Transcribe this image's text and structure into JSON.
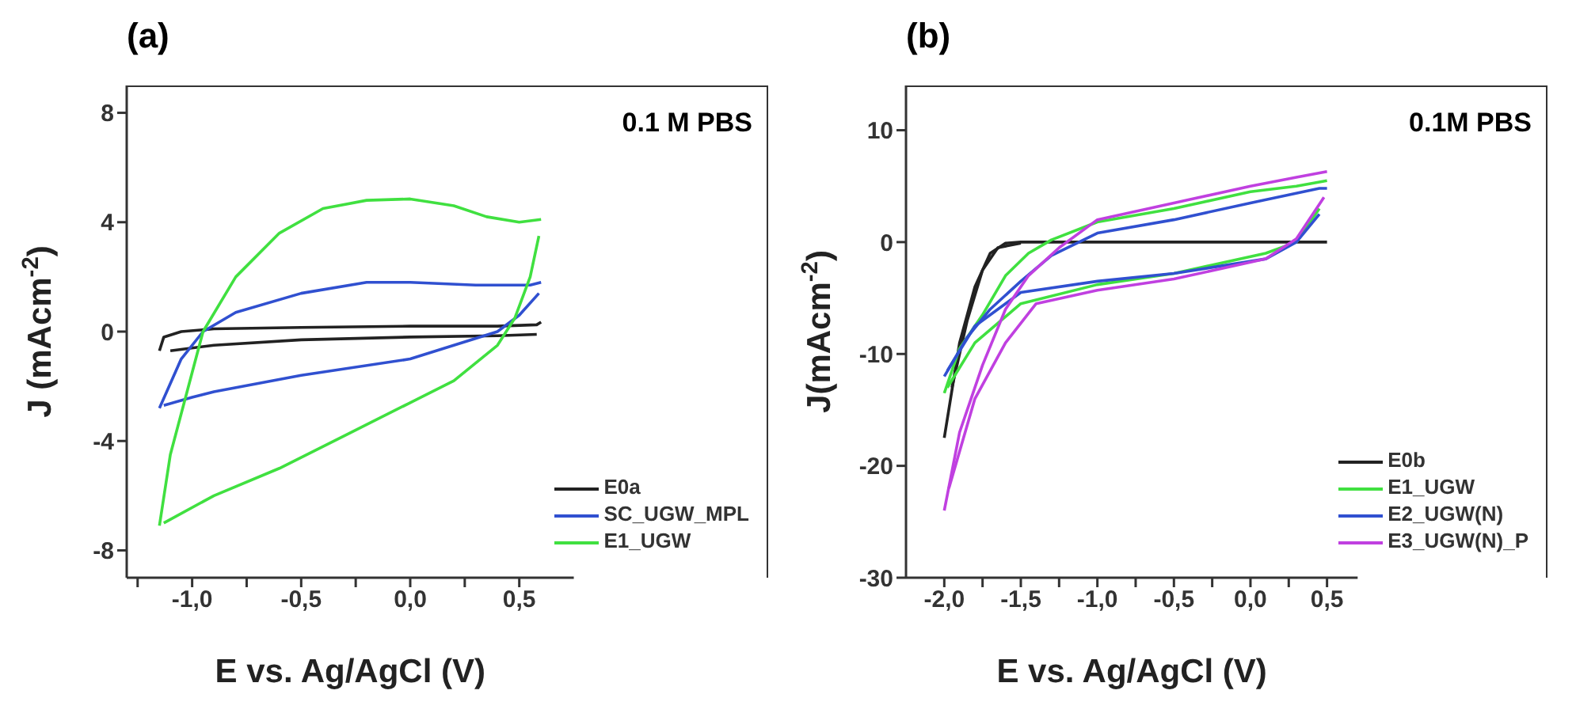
{
  "chart_data": [
    {
      "type": "line",
      "title": "(a)",
      "xlabel": "E vs. Ag/AgCl (V)",
      "ylabel": "J (mAcm$^{-2}$)",
      "annotations": [
        "0.1 M PBS"
      ],
      "xlim": [
        -1.3,
        0.75
      ],
      "xticks": [
        {
          "value": -1.25,
          "label": null
        },
        {
          "value": -1,
          "label": "-1,0"
        },
        {
          "value": -0.75,
          "label": null
        },
        {
          "value": -0.5,
          "label": "-0,5"
        },
        {
          "value": -0.25,
          "label": null
        },
        {
          "value": 0,
          "label": "0,0"
        },
        {
          "value": 0.25,
          "label": null
        },
        {
          "value": 0.5,
          "label": "0,5"
        }
      ],
      "ylim": [
        -9,
        9
      ],
      "yticks": [
        -8,
        -4,
        0,
        4,
        8
      ],
      "grid": false,
      "legend": "bottom right",
      "marker": "none",
      "line_style": "solid",
      "series": [
        {
          "name": "E0a",
          "color": "#222222",
          "x": [
            -1.15,
            -1.13,
            -1.05,
            -0.9,
            -0.5,
            0,
            0.4,
            0.58,
            0.6
          ],
          "values": [
            -0.7,
            -0.2,
            0.0,
            0.1,
            0.15,
            0.2,
            0.2,
            0.25,
            0.35
          ]
        },
        {
          "color": "#222222",
          "x": [
            0.58,
            0.4,
            0,
            -0.5,
            -0.9,
            -1.1
          ],
          "values": [
            -0.1,
            -0.15,
            -0.2,
            -0.3,
            -0.5,
            -0.7
          ]
        },
        {
          "name": "SC_UGW_MPL",
          "color": "#3050d0",
          "x": [
            -1.15,
            -1.05,
            -0.95,
            -0.8,
            -0.5,
            -0.2,
            0,
            0.3,
            0.55,
            0.6
          ],
          "values": [
            -2.8,
            -1.0,
            0.0,
            0.7,
            1.4,
            1.8,
            1.8,
            1.7,
            1.7,
            1.8
          ]
        },
        {
          "color": "#3050d0",
          "x": [
            0.59,
            0.5,
            0.4,
            0.2,
            0,
            -0.5,
            -0.9,
            -1.0,
            -1.13
          ],
          "values": [
            1.4,
            0.6,
            0.0,
            -0.5,
            -1.0,
            -1.6,
            -2.2,
            -2.4,
            -2.7
          ]
        },
        {
          "name": "E1_UGW",
          "color": "#40e040",
          "x": [
            -1.15,
            -1.1,
            -1.0,
            -0.95,
            -0.8,
            -0.6,
            -0.4,
            -0.2,
            0,
            0.2,
            0.35,
            0.5,
            0.6
          ],
          "values": [
            -7.1,
            -4.5,
            -1.5,
            0,
            2.0,
            3.6,
            4.5,
            4.8,
            4.85,
            4.6,
            4.2,
            4.0,
            4.1
          ]
        },
        {
          "color": "#40e040",
          "x": [
            0.59,
            0.55,
            0.48,
            0.4,
            0.2,
            0,
            -0.3,
            -0.6,
            -0.9,
            -1.13
          ],
          "values": [
            3.5,
            2.0,
            0.5,
            -0.5,
            -1.8,
            -2.6,
            -3.8,
            -5.0,
            -6.0,
            -7.0
          ]
        }
      ]
    },
    {
      "type": "line",
      "title": "(b)",
      "xlabel": "E vs. Ag/AgCl (V)",
      "ylabel": "J(mAcm$^{-2}$)",
      "annotations": [
        "0.1M PBS"
      ],
      "xlim": [
        -2.25,
        0.7
      ],
      "xticks": [
        {
          "value": -2,
          "label": "-2,0"
        },
        {
          "value": -1.75,
          "label": null
        },
        {
          "value": -1.5,
          "label": "-1,5"
        },
        {
          "value": -1.25,
          "label": null
        },
        {
          "value": -1,
          "label": "-1,0"
        },
        {
          "value": -0.75,
          "label": null
        },
        {
          "value": -0.5,
          "label": "-0,5"
        },
        {
          "value": -0.25,
          "label": null
        },
        {
          "value": 0,
          "label": "0,0"
        },
        {
          "value": 0.25,
          "label": null
        },
        {
          "value": 0.5,
          "label": "0,5"
        }
      ],
      "ylim": [
        -30,
        14
      ],
      "yticks": [
        -30,
        -20,
        -10,
        0,
        10
      ],
      "grid": false,
      "legend": "bottom right",
      "marker": "none",
      "line_style": "solid",
      "series": [
        {
          "name": "E0b",
          "color": "#222222",
          "x": [
            -2.0,
            -1.9,
            -1.8,
            -1.7,
            -1.6,
            -1.5,
            0.5
          ],
          "values": [
            -17.5,
            -9,
            -4,
            -1,
            -0.1,
            0,
            0
          ]
        },
        {
          "color": "#222222",
          "x": [
            -1.5,
            -1.65,
            -1.75,
            -1.85,
            -1.95
          ],
          "values": [
            -0.1,
            -0.5,
            -2.5,
            -7,
            -13
          ]
        },
        {
          "name": "E1_UGW",
          "color": "#40e040",
          "x": [
            -2.0,
            -1.9,
            -1.75,
            -1.6,
            -1.45,
            -1.3,
            -1.0,
            -0.5,
            0,
            0.3,
            0.5
          ],
          "values": [
            -13.5,
            -9.5,
            -6.5,
            -3,
            -1,
            0.2,
            1.8,
            3,
            4.5,
            5,
            5.5
          ]
        },
        {
          "color": "#40e040",
          "x": [
            0.45,
            0.3,
            0.1,
            -0.5,
            -1.0,
            -1.5,
            -1.8,
            -1.98
          ],
          "values": [
            3,
            0,
            -1,
            -2.8,
            -3.8,
            -5.5,
            -9,
            -13
          ]
        },
        {
          "name": "E2_UGW(N)",
          "color": "#3050d0",
          "x": [
            -2.0,
            -1.85,
            -1.7,
            -1.5,
            -1.3,
            -1.0,
            -0.5,
            0,
            0.45,
            0.5
          ],
          "values": [
            -12,
            -8.5,
            -6,
            -3.5,
            -1.2,
            0.8,
            2,
            3.5,
            4.8,
            4.8
          ]
        },
        {
          "color": "#3050d0",
          "x": [
            0.45,
            0.3,
            0.1,
            -0.5,
            -1.0,
            -1.5,
            -1.8,
            -1.98
          ],
          "values": [
            2.5,
            0,
            -1.5,
            -2.8,
            -3.5,
            -4.5,
            -7.5,
            -11.5
          ]
        },
        {
          "name": "E3_UGW(N)_P",
          "color": "#c040e0",
          "x": [
            -2.0,
            -1.9,
            -1.75,
            -1.6,
            -1.45,
            -1.25,
            -1.0,
            -0.5,
            0,
            0.3,
            0.5
          ],
          "values": [
            -24,
            -17,
            -11,
            -6,
            -3,
            -0.5,
            2,
            3.5,
            5,
            5.8,
            6.3
          ]
        },
        {
          "color": "#c040e0",
          "x": [
            0.48,
            0.3,
            0.1,
            -0.5,
            -1.0,
            -1.4,
            -1.6,
            -1.8,
            -1.97
          ],
          "values": [
            4,
            0.3,
            -1.5,
            -3.3,
            -4.3,
            -5.5,
            -9,
            -14,
            -22
          ]
        }
      ]
    }
  ]
}
